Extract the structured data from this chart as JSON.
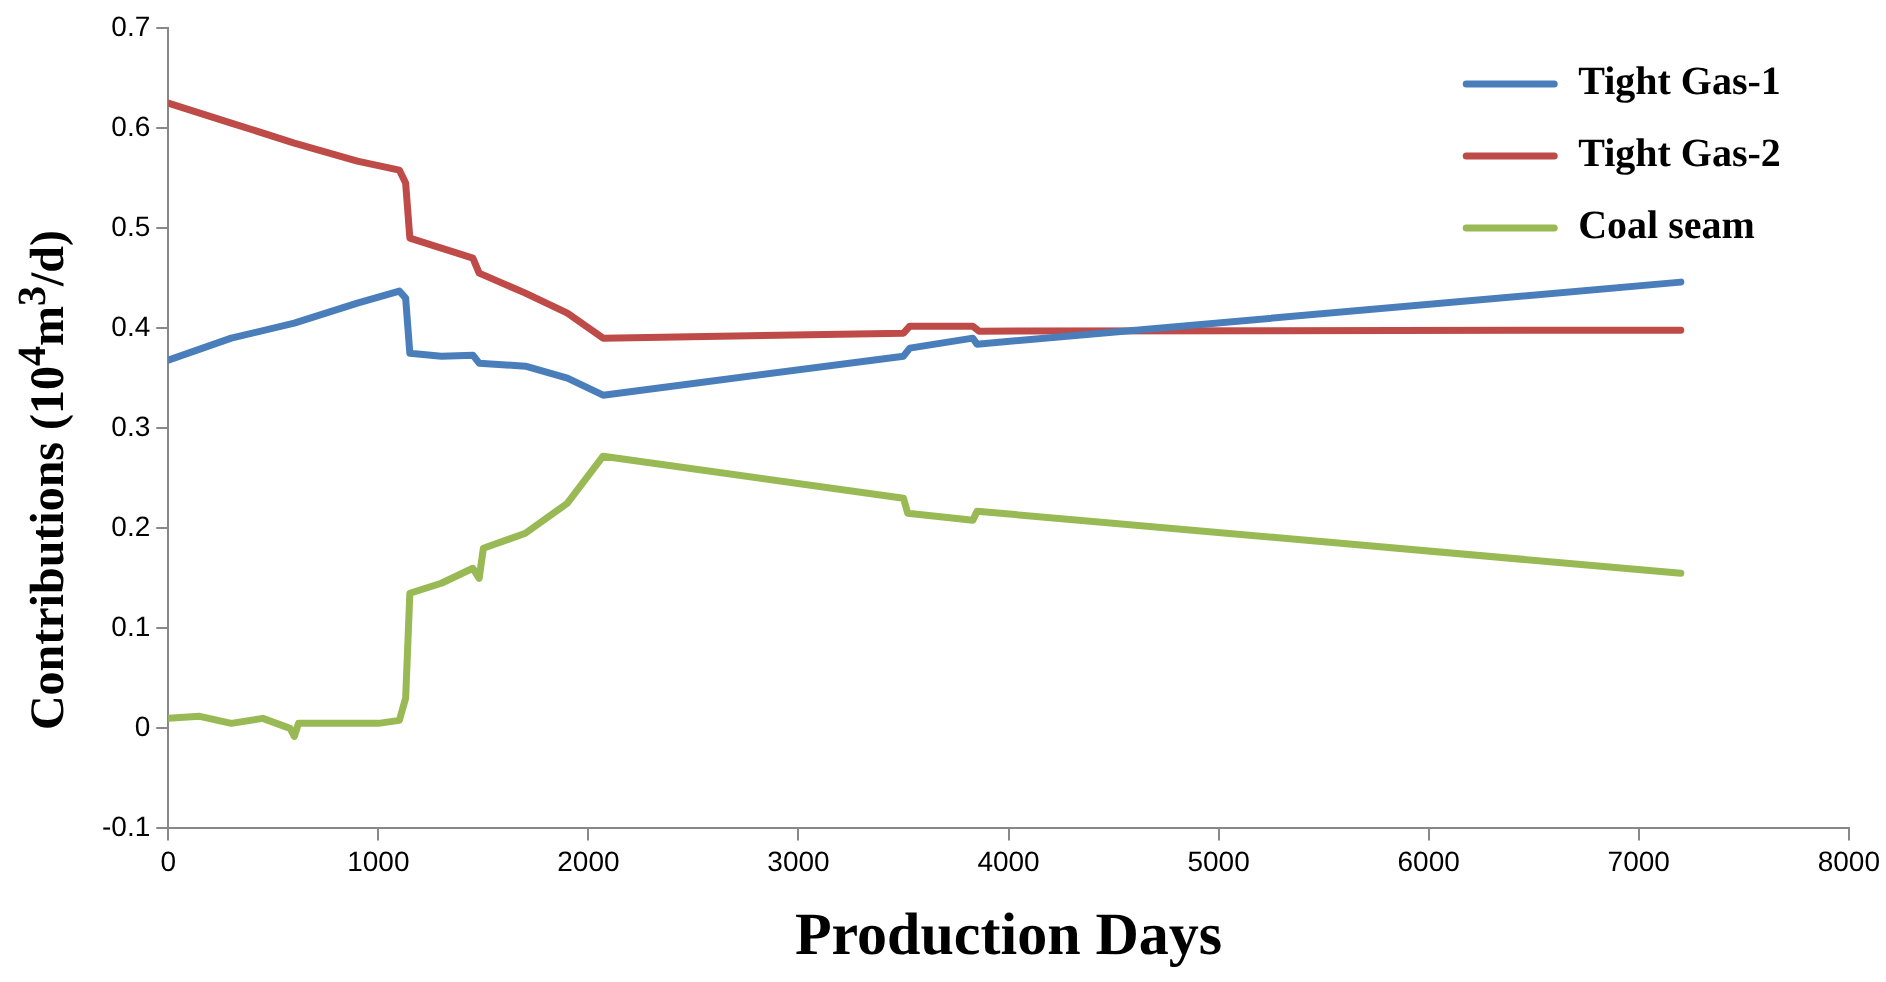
{
  "chart_data": {
    "type": "line",
    "xlabel": "Production Days",
    "ylabel": "Contributions (10$^{4}$m$^{3}$/d)",
    "xlim": [
      0,
      8000
    ],
    "xticks": [
      0,
      1000,
      2000,
      3000,
      4000,
      5000,
      6000,
      7000,
      8000
    ],
    "ylim": [
      -0.1,
      0.7
    ],
    "yticks": [
      -0.1,
      0,
      0.1,
      0.2,
      0.3,
      0.4,
      0.5,
      0.6,
      0.7
    ],
    "grid": false,
    "legend": "top right",
    "marker": "none",
    "line_style": "solid",
    "series": [
      {
        "name": "Tight Gas-1",
        "color": "#4a7ebb",
        "x": [
          0,
          300,
          600,
          900,
          1100,
          1130,
          1150,
          1300,
          1450,
          1480,
          1700,
          1900,
          2070,
          3500,
          3530,
          3830,
          3850,
          7200
        ],
        "values": [
          0.368,
          0.39,
          0.405,
          0.425,
          0.437,
          0.43,
          0.375,
          0.372,
          0.373,
          0.365,
          0.362,
          0.35,
          0.333,
          0.372,
          0.38,
          0.39,
          0.384,
          0.446
        ]
      },
      {
        "name": "Tight Gas-2",
        "color": "#be4b48",
        "x": [
          0,
          300,
          600,
          900,
          1100,
          1130,
          1150,
          1300,
          1450,
          1480,
          1700,
          1900,
          2070,
          3500,
          3530,
          3830,
          3860,
          7200
        ],
        "values": [
          0.625,
          0.605,
          0.585,
          0.567,
          0.558,
          0.545,
          0.49,
          0.48,
          0.47,
          0.455,
          0.435,
          0.415,
          0.39,
          0.395,
          0.402,
          0.402,
          0.397,
          0.398
        ]
      },
      {
        "name": "Coal seam",
        "color": "#98b954",
        "x": [
          0,
          150,
          300,
          450,
          580,
          600,
          620,
          800,
          1000,
          1100,
          1130,
          1150,
          1300,
          1450,
          1480,
          1500,
          1700,
          1900,
          2070,
          3500,
          3520,
          3830,
          3850,
          7200
        ],
        "values": [
          0.01,
          0.012,
          0.005,
          0.01,
          0.0,
          -0.008,
          0.005,
          0.005,
          0.005,
          0.008,
          0.03,
          0.135,
          0.145,
          0.16,
          0.15,
          0.18,
          0.195,
          0.225,
          0.272,
          0.23,
          0.215,
          0.208,
          0.217,
          0.155
        ]
      }
    ]
  }
}
